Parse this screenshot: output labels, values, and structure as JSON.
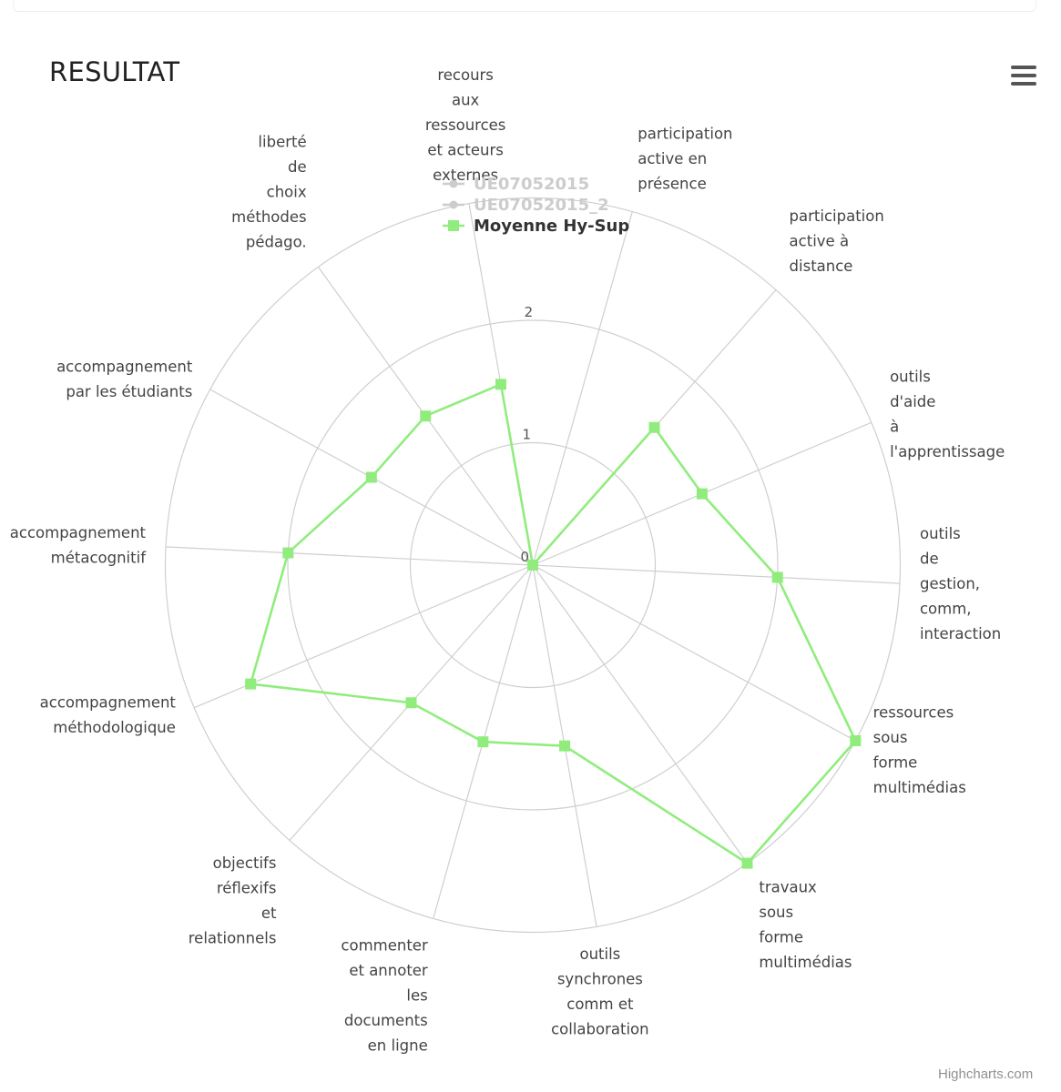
{
  "chart_data": {
    "type": "radar",
    "title": "RESULTAT",
    "credits": "Highcharts.com",
    "y_ticks": [
      "0",
      "1",
      "2"
    ],
    "ylim": [
      0,
      3
    ],
    "categories": [
      [
        "recours",
        "aux",
        "ressources",
        "et acteurs",
        "externes"
      ],
      [
        "participation",
        "active en",
        "présence"
      ],
      [
        "participation",
        "active à",
        "distance"
      ],
      [
        "outils",
        "d'aide",
        "à",
        "l'apprentissage"
      ],
      [
        "outils",
        "de",
        "gestion,",
        "comm,",
        "interaction"
      ],
      [
        "ressources",
        "sous",
        "forme",
        "multimédias"
      ],
      [
        "travaux",
        "sous",
        "forme",
        "multimédias"
      ],
      [
        "outils",
        "synchrones",
        "comm et",
        "collaboration"
      ],
      [
        "commenter",
        "et annoter",
        "les",
        "documents",
        "en ligne"
      ],
      [
        "objectifs",
        "réflexifs",
        "et",
        "relationnels"
      ],
      [
        "accompagnement",
        "méthodologique"
      ],
      [
        "accompagnement",
        "métacognitif"
      ],
      [
        "accompagnement",
        "par les étudiants"
      ],
      [
        "liberté",
        "de",
        "choix",
        "méthodes",
        "pédago."
      ]
    ],
    "series": [
      {
        "name": "UE07052015",
        "values": [
          0,
          0,
          0,
          0,
          0,
          0,
          0,
          0,
          0,
          0,
          0,
          0,
          0,
          0
        ],
        "color": "#cccccc",
        "visible": false
      },
      {
        "name": "UE07052015_2",
        "values": [
          0,
          0,
          0,
          0,
          0,
          0,
          0,
          0,
          0,
          0,
          0,
          0,
          0,
          0
        ],
        "color": "#cccccc",
        "visible": false
      },
      {
        "name": "Moyenne Hy-Sup",
        "values": [
          1.5,
          0,
          1.5,
          1.5,
          2,
          3,
          3,
          1.5,
          1.5,
          1.5,
          2.5,
          2,
          1.5,
          1.5
        ],
        "color": "#90ed7d",
        "visible": true
      }
    ],
    "legend_position": "top-center",
    "grid": true
  }
}
